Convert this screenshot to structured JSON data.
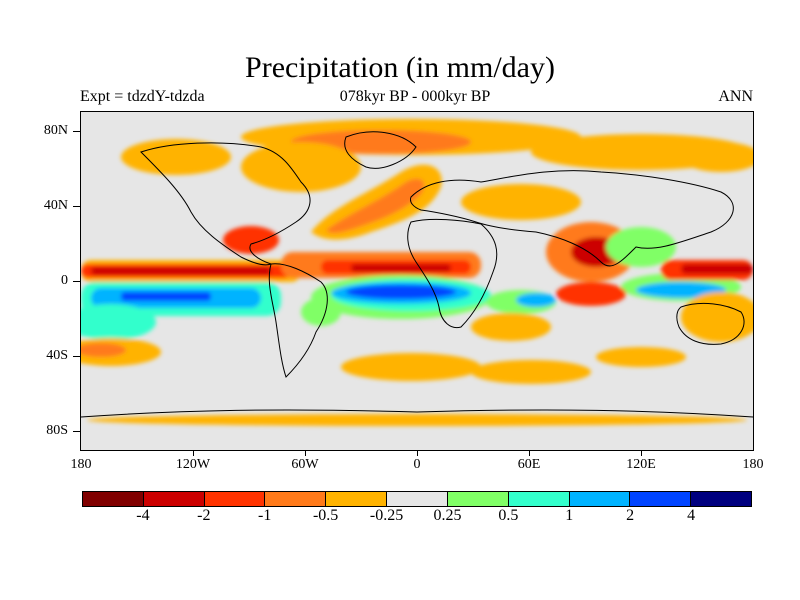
{
  "title": "Precipitation (in mm/day)",
  "experiment_label": "Expt = tdzdY-tdzda",
  "period_label": "078kyr BP - 000kyr BP",
  "season_label": "ANN",
  "axes": {
    "y_ticks": [
      "80N",
      "40N",
      "0",
      "40S",
      "80S"
    ],
    "x_ticks": [
      "180",
      "120W",
      "60W",
      "0",
      "60E",
      "120E",
      "180"
    ]
  },
  "colorbar": {
    "colors": [
      "#800000",
      "#cc0000",
      "#ff3300",
      "#ff7a1a",
      "#ffb300",
      "#e6e6e6",
      "#80ff66",
      "#33ffcc",
      "#00b3ff",
      "#0044ff",
      "#00007f"
    ],
    "labels": [
      "-4",
      "-2",
      "-1",
      "-0.5",
      "-0.25",
      "0.25",
      "0.5",
      "1",
      "2",
      "4"
    ]
  },
  "map_data": {
    "type": "filled-contour-map",
    "field": "precipitation anomaly",
    "units": "mm/day",
    "lon_range": [
      -180,
      180
    ],
    "lat_range": [
      -90,
      90
    ],
    "features": [
      {
        "region": "tropical Pacific north of equator",
        "lon": [
          -180,
          -80
        ],
        "lat": [
          3,
          12
        ],
        "value": -2.5
      },
      {
        "region": "tropical Pacific south of equator",
        "lon": [
          -170,
          -90
        ],
        "lat": [
          -12,
          -3
        ],
        "value": 2.0
      },
      {
        "region": "tropical Atlantic north",
        "lon": [
          -60,
          -10
        ],
        "lat": [
          2,
          10
        ],
        "value": -2.5
      },
      {
        "region": "tropical Atlantic / Brazil south",
        "lon": [
          -60,
          10
        ],
        "lat": [
          -12,
          -2
        ],
        "value": 2.5
      },
      {
        "region": "North Atlantic",
        "lon": [
          -80,
          -10
        ],
        "lat": [
          20,
          60
        ],
        "value": -1.0
      },
      {
        "region": "Arctic / Greenland",
        "lon": [
          -100,
          40
        ],
        "lat": [
          60,
          85
        ],
        "value": -0.5
      },
      {
        "region": "Southeast Asia",
        "lon": [
          80,
          130
        ],
        "lat": [
          0,
          25
        ],
        "value": -2.0
      },
      {
        "region": "western tropical Pacific",
        "lon": [
          125,
          180
        ],
        "lat": [
          0,
          10
        ],
        "value": -2.0
      },
      {
        "region": "eastern Indian Ocean",
        "lon": [
          80,
          110
        ],
        "lat": [
          -8,
          0
        ],
        "value": -1.0
      },
      {
        "region": "southern Indian Ocean",
        "lon": [
          40,
          80
        ],
        "lat": [
          -15,
          -5
        ],
        "value": 1.0
      },
      {
        "region": "South Atlantic / Southern Ocean",
        "lon": [
          -60,
          60
        ],
        "lat": [
          -45,
          -30
        ],
        "value": -0.4
      },
      {
        "region": "Antarctic coast",
        "lon": [
          -180,
          180
        ],
        "lat": [
          -78,
          -72
        ],
        "value": -0.3
      }
    ]
  }
}
